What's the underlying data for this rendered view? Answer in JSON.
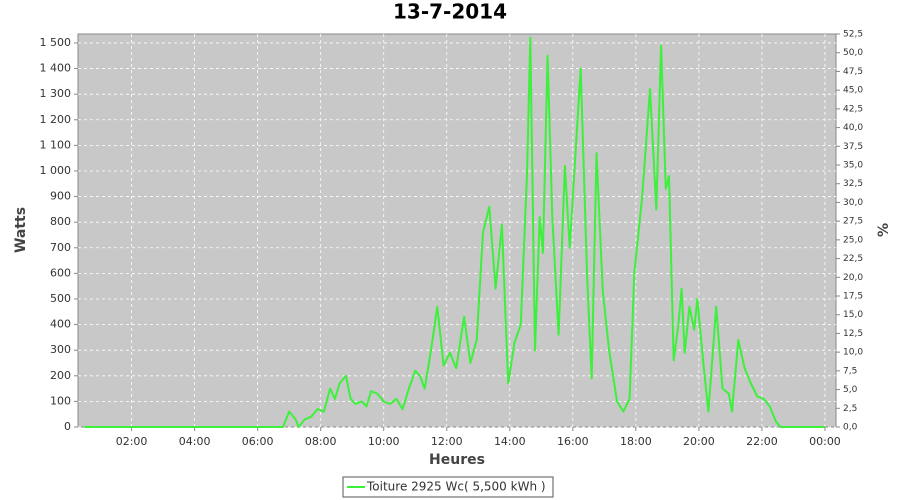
{
  "chart_data": {
    "type": "line",
    "title": "13-7-2014",
    "x_label": "Heures",
    "y_label": "Watts",
    "y2_label": "%",
    "grid": true,
    "legend": "bottom",
    "x": [
      0.5,
      6.5,
      6.8,
      7.0,
      7.2,
      7.3,
      7.5,
      7.7,
      7.9,
      8.1,
      8.3,
      8.45,
      8.6,
      8.8,
      8.95,
      9.1,
      9.3,
      9.45,
      9.6,
      9.8,
      10.0,
      10.2,
      10.4,
      10.6,
      10.8,
      11.0,
      11.15,
      11.3,
      11.5,
      11.7,
      11.9,
      12.1,
      12.3,
      12.55,
      12.75,
      12.95,
      13.15,
      13.35,
      13.55,
      13.75,
      13.95,
      14.15,
      14.35,
      14.55,
      14.65,
      14.8,
      14.95,
      15.05,
      15.2,
      15.35,
      15.55,
      15.75,
      15.9,
      16.05,
      16.25,
      16.45,
      16.6,
      16.75,
      16.95,
      17.15,
      17.4,
      17.6,
      17.8,
      17.95,
      18.2,
      18.45,
      18.65,
      18.8,
      18.95,
      19.05,
      19.2,
      19.35,
      19.45,
      19.55,
      19.7,
      19.85,
      19.95,
      20.15,
      20.3,
      20.55,
      20.75,
      20.95,
      21.05,
      21.25,
      21.45,
      21.65,
      21.85,
      22.05,
      22.25,
      22.45,
      22.6,
      24.0
    ],
    "series": [
      {
        "name": "Toiture 2925 Wc( 5,500 kWh )",
        "color": "#3cf03c",
        "values": [
          0,
          0,
          0,
          60,
          30,
          0,
          30,
          40,
          70,
          60,
          150,
          110,
          170,
          200,
          110,
          90,
          100,
          80,
          140,
          130,
          100,
          90,
          110,
          70,
          150,
          220,
          200,
          150,
          300,
          470,
          240,
          290,
          230,
          430,
          250,
          340,
          760,
          860,
          540,
          790,
          170,
          330,
          400,
          1000,
          1520,
          300,
          820,
          680,
          1450,
          820,
          360,
          1020,
          700,
          1000,
          1400,
          600,
          190,
          1070,
          530,
          300,
          100,
          60,
          110,
          600,
          900,
          1320,
          850,
          1490,
          930,
          980,
          260,
          400,
          540,
          290,
          470,
          380,
          500,
          240,
          60,
          470,
          150,
          130,
          60,
          340,
          230,
          170,
          120,
          110,
          80,
          20,
          0,
          0
        ]
      }
    ],
    "xlim": [
      0.3,
      24.35
    ],
    "xticks": [
      {
        "value": 2,
        "label": "02:00"
      },
      {
        "value": 4,
        "label": "04:00"
      },
      {
        "value": 6,
        "label": "06:00"
      },
      {
        "value": 8,
        "label": "08:00"
      },
      {
        "value": 10,
        "label": "10:00"
      },
      {
        "value": 12,
        "label": "12:00"
      },
      {
        "value": 14,
        "label": "14:00"
      },
      {
        "value": 16,
        "label": "16:00"
      },
      {
        "value": 18,
        "label": "18:00"
      },
      {
        "value": 20,
        "label": "20:00"
      },
      {
        "value": 22,
        "label": "22:00"
      },
      {
        "value": 24,
        "label": "00:00"
      }
    ],
    "ylim": [
      0,
      1535
    ],
    "yticks": [
      0,
      100,
      200,
      300,
      400,
      500,
      600,
      700,
      800,
      900,
      {
        "value": 1000,
        "label": "1 000"
      },
      {
        "value": 1100,
        "label": "1 100"
      },
      {
        "value": 1200,
        "label": "1 200"
      },
      {
        "value": 1300,
        "label": "1 300"
      },
      {
        "value": 1400,
        "label": "1 400"
      },
      {
        "value": 1500,
        "label": "1 500"
      }
    ],
    "y2lim": [
      0,
      52.5
    ],
    "y2ticks": [
      {
        "value": 0,
        "label": "0,0"
      },
      {
        "value": 2.5,
        "label": "2,5"
      },
      {
        "value": 5,
        "label": "5,0"
      },
      {
        "value": 7.5,
        "label": "7,5"
      },
      {
        "value": 10,
        "label": "10,0"
      },
      {
        "value": 12.5,
        "label": "12,5"
      },
      {
        "value": 15,
        "label": "15,0"
      },
      {
        "value": 17.5,
        "label": "17,5"
      },
      {
        "value": 20,
        "label": "20,0"
      },
      {
        "value": 22.5,
        "label": "22,5"
      },
      {
        "value": 25,
        "label": "25,0"
      },
      {
        "value": 27.5,
        "label": "27,5"
      },
      {
        "value": 30,
        "label": "30,0"
      },
      {
        "value": 32.5,
        "label": "32,5"
      },
      {
        "value": 35,
        "label": "35,0"
      },
      {
        "value": 37.5,
        "label": "37,5"
      },
      {
        "value": 40,
        "label": "40,0"
      },
      {
        "value": 42.5,
        "label": "42,5"
      },
      {
        "value": 45,
        "label": "45,0"
      },
      {
        "value": 47.5,
        "label": "47,5"
      },
      {
        "value": 50,
        "label": "50,0"
      },
      {
        "value": 52.5,
        "label": "52,5"
      }
    ]
  }
}
